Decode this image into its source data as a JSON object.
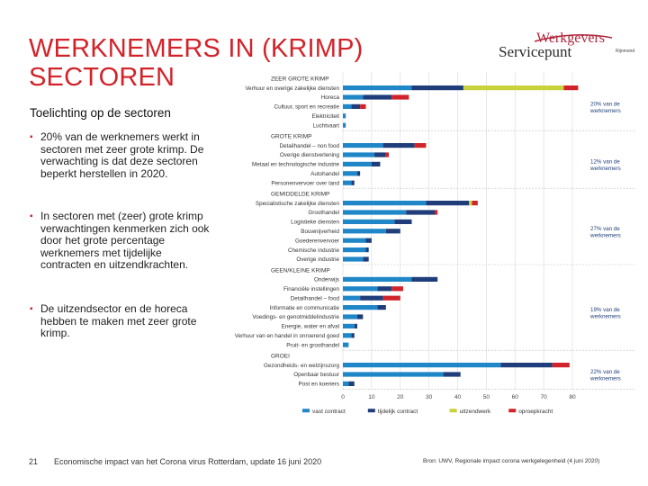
{
  "title_line1": "WERKNEMERS IN (KRIMP)",
  "title_line2": "SECTOREN",
  "logo": {
    "line1": "Werkgevers",
    "line2": "Servicepunt",
    "sub": "Rijnmond"
  },
  "intro_title": "Toelichting op de sectoren",
  "bullets": [
    "20% van de werknemers werkt in sectoren met zeer grote krimp. De verwachting is dat deze sectoren beperkt herstellen in 2020.",
    "In sectoren met (zeer) grote krimp verwachtingen kenmerken zich ook door het grote percentage werknemers met tijdelijke contracten en uitzendkrachten.",
    "De uitzendsector en de horeca hebben te maken met zeer grote krimp."
  ],
  "footer": {
    "page_number": "21",
    "text": "Economische impact van het Corona virus Rotterdam, update 16 juni 2020",
    "source": "Bron: UWV, Regionale impact corona werkgelegenheid (4 juni 2020)"
  },
  "colors": {
    "vast": "#1f86c8",
    "tijdelijk": "#1f3d7a",
    "uitzend": "#c8d23c",
    "oproep": "#d2232a",
    "title": "#d2232a"
  },
  "chart_data": {
    "type": "bar",
    "orientation": "horizontal",
    "stacked": true,
    "xlim": [
      0,
      80
    ],
    "xticks": [
      "0",
      "10",
      "20",
      "30",
      "40",
      "50",
      "60",
      "70",
      "80"
    ],
    "legend": [
      "vast contract",
      "tijdelijk contract",
      "uitzendwerk",
      "oproepkracht"
    ],
    "legend_position": "bottom",
    "grid": true,
    "groups": [
      {
        "name": "ZEER GROTE KRIMP",
        "note": "20% van de werknemers",
        "rows": [
          {
            "label": "Verhuur en overige zakelijke diensten",
            "values": [
              24,
              18,
              35,
              5
            ]
          },
          {
            "label": "Horeca",
            "values": [
              7,
              10,
              0,
              6
            ]
          },
          {
            "label": "Cultuur, sport en recreatie",
            "values": [
              3,
              3,
              0,
              2
            ]
          },
          {
            "label": "Elektriciteit",
            "values": [
              1,
              0,
              0,
              0
            ]
          },
          {
            "label": "Luchtvaart",
            "values": [
              1,
              0,
              0,
              0
            ]
          }
        ]
      },
      {
        "name": "GROTE KRIMP",
        "note": "12% van de werknemers",
        "rows": [
          {
            "label": "Detailhandel – non food",
            "values": [
              14,
              11,
              0,
              4
            ]
          },
          {
            "label": "Overige dienstverlening",
            "values": [
              11,
              4,
              0,
              1
            ]
          },
          {
            "label": "Metaal en technologische industrie",
            "values": [
              10,
              3,
              0,
              0
            ]
          },
          {
            "label": "Autohandel",
            "values": [
              5,
              1,
              0,
              0
            ]
          },
          {
            "label": "Personenvervoer over land",
            "values": [
              3,
              1,
              0,
              0
            ]
          }
        ]
      },
      {
        "name": "GEMIDDELDE KRIMP",
        "note": "27% van de werknemers",
        "rows": [
          {
            "label": "Specialistische zakelijke diensten",
            "values": [
              29,
              15,
              1,
              2
            ]
          },
          {
            "label": "Groothandel",
            "values": [
              22,
              10,
              0,
              1
            ]
          },
          {
            "label": "Logistieke diensten",
            "values": [
              18,
              6,
              0,
              0
            ]
          },
          {
            "label": "Bouwnijverheid",
            "values": [
              15,
              5,
              0,
              0
            ]
          },
          {
            "label": "Goederenvervoer",
            "values": [
              8,
              2,
              0,
              0
            ]
          },
          {
            "label": "Chemische industrie",
            "values": [
              8,
              1,
              0,
              0
            ]
          },
          {
            "label": "Overige industrie",
            "values": [
              7,
              2,
              0,
              0
            ]
          }
        ]
      },
      {
        "name": "GEEN/KLEINE KRIMP",
        "note": "19% van de werknemers",
        "rows": [
          {
            "label": "Onderwijs",
            "values": [
              24,
              9,
              0,
              0
            ]
          },
          {
            "label": "Financiële instellingen",
            "values": [
              12,
              5,
              0,
              4
            ]
          },
          {
            "label": "Detailhandel – food",
            "values": [
              6,
              8,
              0,
              6
            ]
          },
          {
            "label": "Informatie en communicatie",
            "values": [
              12,
              3,
              0,
              0
            ]
          },
          {
            "label": "Voedings- en genotmiddelindustrie",
            "values": [
              5,
              2,
              0,
              0
            ]
          },
          {
            "label": "Energie, water en afval",
            "values": [
              4,
              1,
              0,
              0
            ]
          },
          {
            "label": "Verhuur van en handel in onroerend goed",
            "values": [
              3,
              1,
              0,
              0
            ]
          },
          {
            "label": "Pruit- en groothandel",
            "values": [
              2,
              0,
              0,
              0
            ]
          }
        ]
      },
      {
        "name": "GROEI",
        "note": "22% van de werknemers",
        "rows": [
          {
            "label": "Gezondheids- en welzijnszorg",
            "values": [
              55,
              18,
              0,
              6
            ]
          },
          {
            "label": "Openbaar bestuur",
            "values": [
              35,
              6,
              0,
              0
            ]
          },
          {
            "label": "Post en koeriers",
            "values": [
              2,
              2,
              0,
              0
            ]
          }
        ]
      }
    ]
  }
}
